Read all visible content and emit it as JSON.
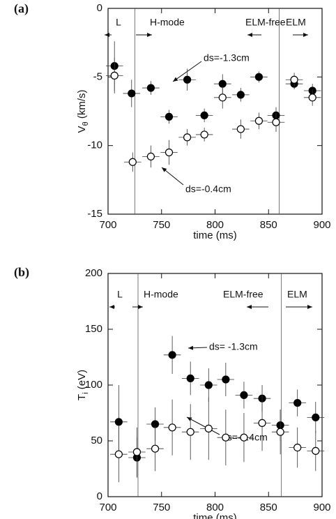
{
  "chart_data": [
    {
      "type": "scatter",
      "panel_label": "(a)",
      "ylabel": "V",
      "ylabel_sub": "θ",
      "ylabel_unit": "(km/s)",
      "xlabel": "time (ms)",
      "xlim": [
        700,
        900
      ],
      "xticks": [
        700,
        750,
        800,
        850,
        900
      ],
      "ylim": [
        -15,
        0
      ],
      "yticks": [
        -15,
        -10,
        -5,
        0
      ],
      "vlines": [
        725,
        860
      ],
      "annotations": [
        "L",
        "H-mode",
        "ELM-free",
        "ELM",
        "ds=-1.3cm",
        "ds=-0.4cm"
      ],
      "series": [
        {
          "marker": "filled",
          "color": "#000000",
          "x": [
            706,
            722,
            740,
            757,
            774,
            790,
            807,
            824,
            841,
            857,
            874,
            891
          ],
          "values": [
            -4.2,
            -6.2,
            -5.8,
            -7.9,
            -5.2,
            -7.8,
            -5.5,
            -6.3,
            -5.0,
            -7.8,
            -5.5,
            -6.0
          ],
          "xerr": [
            8,
            8,
            8,
            8,
            8,
            8,
            8,
            8,
            8,
            8,
            8,
            8
          ],
          "yerr": [
            1.8,
            1.0,
            0.5,
            0.5,
            0.8,
            0.5,
            0.7,
            0.5,
            0.4,
            0.6,
            0.4,
            0.5
          ]
        },
        {
          "marker": "open",
          "color": "#000000",
          "x": [
            706,
            723,
            740,
            757,
            774,
            790,
            807,
            824,
            841,
            857,
            874,
            891
          ],
          "values": [
            -4.9,
            -11.2,
            -10.8,
            -10.5,
            -9.4,
            -9.2,
            -6.5,
            -8.8,
            -8.2,
            -8.3,
            -5.2,
            -6.5
          ],
          "xerr": [
            8,
            8,
            8,
            8,
            8,
            8,
            8,
            8,
            8,
            8,
            8,
            8
          ],
          "yerr": [
            1.3,
            0.7,
            0.8,
            0.9,
            0.6,
            0.5,
            0.8,
            0.7,
            0.6,
            0.7,
            0.5,
            0.6
          ]
        }
      ]
    },
    {
      "type": "scatter",
      "panel_label": "(b)",
      "ylabel": "T",
      "ylabel_sub": "i",
      "ylabel_unit": "(eV)",
      "xlabel": "time (ms)",
      "xlim": [
        700,
        900
      ],
      "xticks": [
        700,
        750,
        800,
        850,
        900
      ],
      "ylim": [
        0,
        200
      ],
      "yticks": [
        0,
        50,
        100,
        150,
        200
      ],
      "vlines": [
        728,
        862
      ],
      "annotations": [
        "L",
        "H-mode",
        "ELM-free",
        "ELM",
        "ds= -1.3cm",
        "ds=-0.4cm"
      ],
      "series": [
        {
          "marker": "filled",
          "color": "#000000",
          "x": [
            710,
            727,
            744,
            760,
            777,
            794,
            810,
            827,
            844,
            861,
            877,
            894
          ],
          "values": [
            67,
            35,
            65,
            127,
            106,
            100,
            105,
            91,
            88,
            64,
            84,
            71
          ],
          "xerr": [
            8,
            8,
            8,
            8,
            8,
            8,
            8,
            8,
            8,
            8,
            8,
            8
          ],
          "yerr": [
            33,
            18,
            15,
            17,
            15,
            15,
            15,
            12,
            12,
            14,
            12,
            14
          ]
        },
        {
          "marker": "open",
          "color": "#000000",
          "x": [
            710,
            727,
            744,
            760,
            777,
            794,
            810,
            827,
            844,
            861,
            877,
            894
          ],
          "values": [
            38,
            40,
            43,
            62,
            58,
            61,
            53,
            53,
            66,
            58,
            44,
            41
          ],
          "xerr": [
            8,
            8,
            8,
            8,
            8,
            8,
            8,
            8,
            8,
            8,
            8,
            8
          ],
          "yerr": [
            25,
            22,
            20,
            25,
            25,
            28,
            25,
            22,
            25,
            20,
            18,
            18
          ]
        }
      ]
    }
  ]
}
